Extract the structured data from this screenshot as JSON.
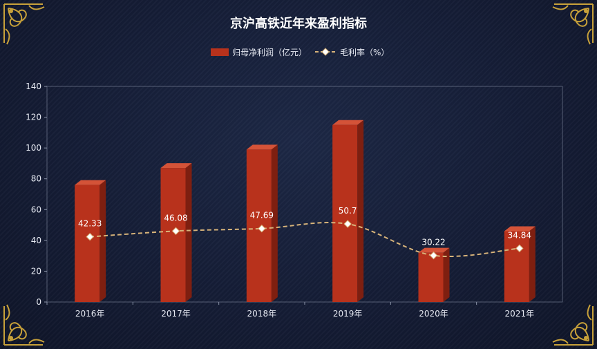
{
  "chart_data": {
    "type": "bar",
    "title": "京沪高铁近年来盈利指标",
    "categories": [
      "2016年",
      "2017年",
      "2018年",
      "2019年",
      "2020年",
      "2021年"
    ],
    "series": [
      {
        "name": "归母净利润（亿元）",
        "type": "bar",
        "values": [
          76,
          87,
          99,
          115,
          32,
          46
        ],
        "color": "#b8321c"
      },
      {
        "name": "毛利率（%）",
        "type": "line",
        "values": [
          42.33,
          46.08,
          47.69,
          50.7,
          30.22,
          34.84
        ],
        "labels": [
          "42.33",
          "46.08",
          "47.69",
          "50.7",
          "30.22",
          "34.84"
        ],
        "color": "#d8b47a"
      }
    ],
    "ylim": [
      0,
      140
    ],
    "yticks": [
      0,
      20,
      40,
      60,
      80,
      100,
      120,
      140
    ],
    "legend_position": "top-center",
    "grid": false
  },
  "colors": {
    "background": "#151d36",
    "bar": "#b8321c",
    "line": "#d8b47a",
    "ornament": "#c9a23a"
  }
}
